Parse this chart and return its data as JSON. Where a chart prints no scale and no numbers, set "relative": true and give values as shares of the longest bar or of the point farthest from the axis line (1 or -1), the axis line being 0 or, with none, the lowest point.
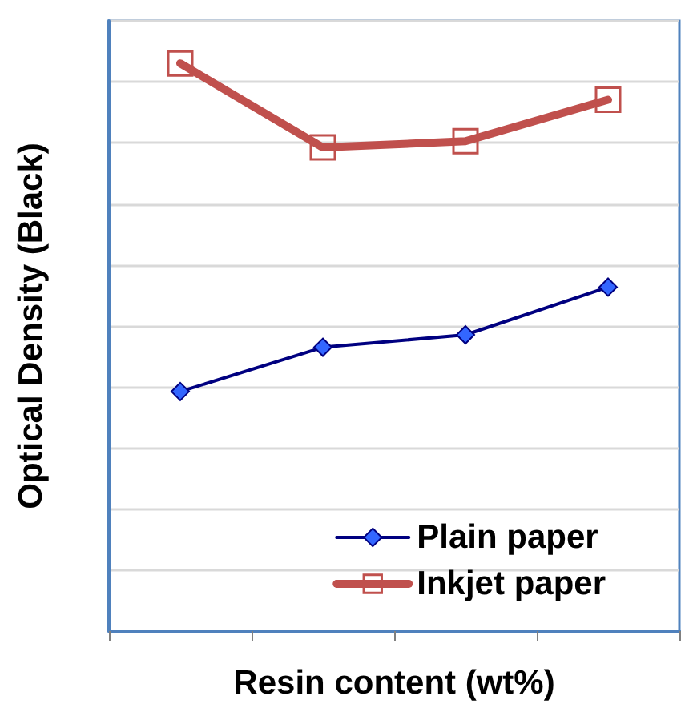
{
  "chart_data": {
    "type": "line",
    "xlabel": "Resin content (wt%)",
    "ylabel": "Optical Density (Black)",
    "relative": true,
    "categories": [
      null,
      null,
      null,
      null
    ],
    "series": [
      {
        "name": "Plain paper",
        "color": "#000080",
        "marker": "diamond",
        "values": [
          0.422,
          0.5,
          0.522,
          0.606
        ]
      },
      {
        "name": "Inkjet paper",
        "color": "#c0504d",
        "marker": "square",
        "values": [
          1,
          0.852,
          0.863,
          0.936
        ]
      }
    ],
    "grid": "y",
    "legend": "bottom right"
  }
}
